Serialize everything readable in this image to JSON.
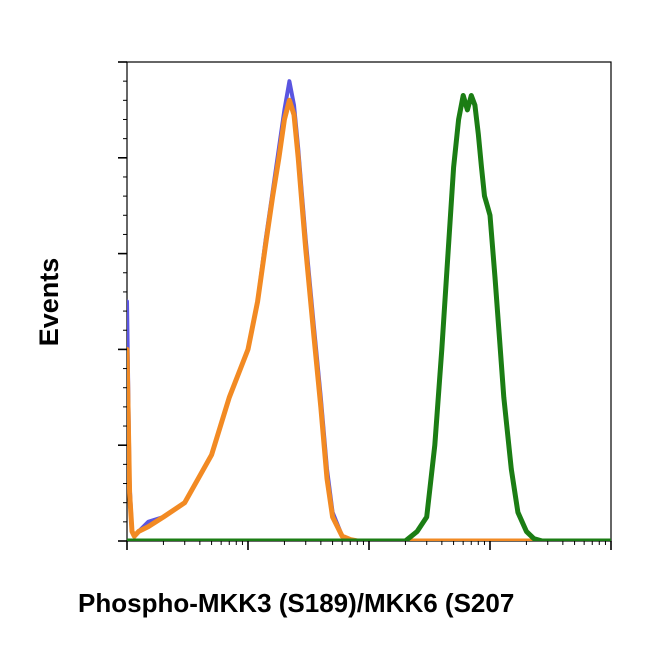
{
  "chart_data": {
    "type": "line",
    "xlabel": "Phospho-MKK3 (S189)/MKK6 (S207",
    "ylabel": "Events",
    "x_scale": "log",
    "xlim": [
      1,
      10000
    ],
    "ylim": [
      0,
      100
    ],
    "grid": false,
    "colors": {
      "axis": "#000000",
      "blue": "#5a55e0",
      "orange": "#f28a23",
      "green": "#1b7d14"
    },
    "series": [
      {
        "color": "#5a55e0",
        "x": [
          1,
          1.05,
          1.1,
          1.15,
          1.25,
          1.5,
          2,
          3,
          5,
          7,
          10,
          12,
          14,
          16,
          18,
          20,
          22,
          24,
          26,
          28,
          30,
          35,
          40,
          45,
          50,
          60,
          70,
          80,
          100,
          130,
          300
        ],
        "y": [
          50,
          12,
          2,
          1,
          2,
          4,
          5,
          8,
          18,
          30,
          40,
          50,
          63,
          73,
          82,
          90,
          96,
          91,
          82,
          72,
          63,
          45,
          30,
          15,
          6,
          1,
          0.3,
          0,
          0,
          0,
          0
        ]
      },
      {
        "color": "#f28a23",
        "x": [
          1,
          1.05,
          1.1,
          1.15,
          1.25,
          1.5,
          2,
          3,
          5,
          7,
          10,
          12,
          14,
          16,
          18,
          20,
          22,
          24,
          26,
          28,
          30,
          35,
          40,
          45,
          50,
          60,
          70,
          80,
          100,
          130,
          10000
        ],
        "y": [
          40,
          10,
          2,
          1,
          2,
          3,
          5,
          8,
          18,
          30,
          40,
          50,
          62,
          72,
          80,
          88,
          92,
          89,
          80,
          70,
          61,
          43,
          28,
          13,
          5,
          1,
          0.3,
          0,
          0,
          0,
          0
        ]
      },
      {
        "color": "#1b7d14",
        "x": [
          1,
          100,
          200,
          250,
          300,
          350,
          400,
          450,
          500,
          550,
          600,
          650,
          700,
          750,
          800,
          850,
          900,
          950,
          1000,
          1100,
          1200,
          1300,
          1500,
          1700,
          2000,
          2300,
          2700,
          3000,
          10000
        ],
        "y": [
          0,
          0,
          0,
          2,
          5,
          20,
          40,
          60,
          78,
          88,
          93,
          90,
          93,
          91,
          85,
          78,
          72,
          70,
          68,
          55,
          42,
          30,
          15,
          6,
          2,
          0.5,
          0,
          0,
          0
        ]
      }
    ]
  }
}
